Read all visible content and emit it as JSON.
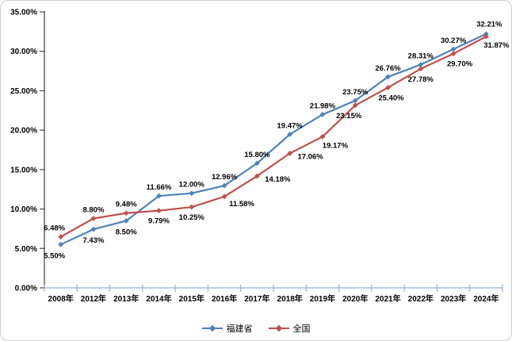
{
  "chart_data": {
    "type": "line",
    "title": "",
    "xlabel": "",
    "ylabel": "",
    "grid": false,
    "legend_position": "bottom",
    "ylim": [
      0,
      35
    ],
    "y_tick_labels": [
      "0.00%",
      "5.00%",
      "10.00%",
      "15.00%",
      "20.00%",
      "25.00%",
      "30.00%",
      "35.00%"
    ],
    "categories": [
      "2008年",
      "2012年",
      "2013年",
      "2014年",
      "2015年",
      "2016年",
      "2017年",
      "2018年",
      "2019年",
      "2020年",
      "2021年",
      "2022年",
      "2023年",
      "2024年"
    ],
    "series": [
      {
        "name": "福建省",
        "color": "#4F81BD",
        "marker": "diamond",
        "values": [
          5.5,
          7.43,
          8.5,
          11.66,
          12.0,
          12.96,
          15.8,
          19.47,
          21.98,
          23.75,
          26.76,
          28.31,
          30.27,
          32.21
        ],
        "labels": [
          "5.50%",
          "7.43%",
          "8.50%",
          "11.66%",
          "12.00%",
          "12.96%",
          "15.80%",
          "19.47%",
          "21.98%",
          "23.75%",
          "26.76%",
          "28.31%",
          "30.27%",
          "32.21%"
        ]
      },
      {
        "name": "全国",
        "color": "#C0504D",
        "marker": "diamond",
        "values": [
          6.48,
          8.8,
          9.48,
          9.79,
          10.25,
          11.58,
          14.18,
          17.06,
          19.17,
          23.15,
          25.4,
          27.78,
          29.7,
          31.87
        ],
        "labels": [
          "6.48%",
          "8.80%",
          "9.48%",
          "9.79%",
          "10.25%",
          "11.58%",
          "14.18%",
          "17.06%",
          "19.17%",
          "23.15%",
          "25.40%",
          "27.78%",
          "29.70%",
          "31.87%"
        ]
      }
    ]
  },
  "colors": {
    "y_axis": "#4d4d4d",
    "x_axis": "#95B3D7",
    "data_label": "#000000",
    "tick_label": "#000000",
    "frame_border": "#cfcfcf",
    "background": "#ffffff"
  }
}
